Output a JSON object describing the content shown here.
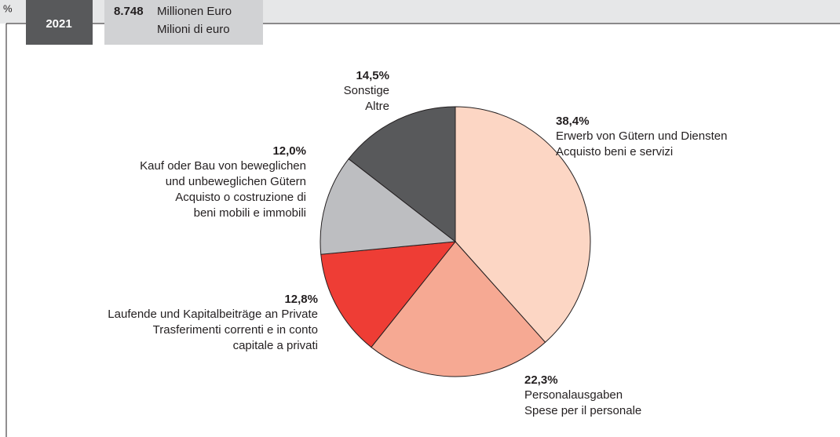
{
  "header": {
    "unit": "%",
    "year": "2021",
    "total": "8.748",
    "total_unit": [
      "Millionen Euro",
      "Milioni di euro"
    ]
  },
  "chart_data": {
    "type": "pie",
    "categories": [
      [
        "Erwerb von Gütern und Diensten",
        "Acquisto beni e servizi"
      ],
      [
        "Personalausgaben",
        "Spese per il personale"
      ],
      [
        "Laufende und Kapitalbeiträge an Private",
        "Trasferimenti correnti e in conto",
        "capitale a privati"
      ],
      [
        "Kauf oder Bau von beweglichen",
        "und unbeweglichen Gütern",
        "Acquisto o costruzione di",
        "beni mobili e immobili"
      ],
      [
        "Sonstige",
        "Altre"
      ]
    ],
    "values": [
      38.4,
      22.3,
      12.8,
      12.0,
      14.5
    ],
    "value_labels": [
      "38,4%",
      "22,3%",
      "12,8%",
      "12,0%",
      "14,5%"
    ],
    "colors": [
      "#fcd6c4",
      "#f6a993",
      "#ee3d35",
      "#bdbec1",
      "#58595b"
    ]
  }
}
